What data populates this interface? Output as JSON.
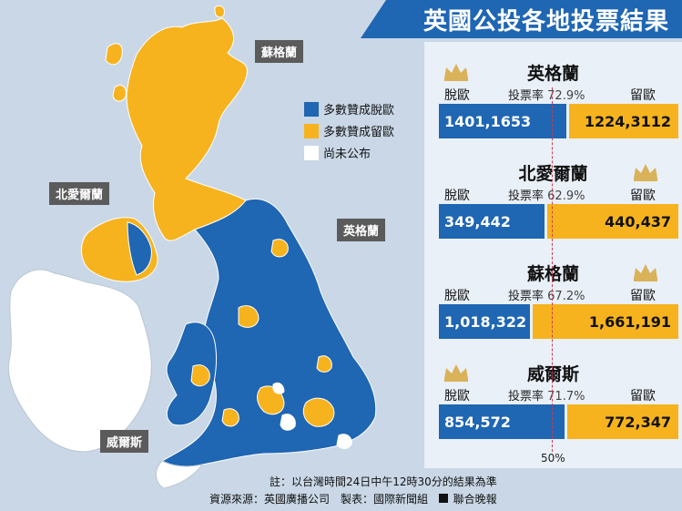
{
  "title": "英國公投各地投票結果",
  "legend": [
    {
      "label": "多數贊成脫歐",
      "color": "#1f66b3"
    },
    {
      "label": "多數贊成留歐",
      "color": "#f6b31e"
    },
    {
      "label": "尚未公布",
      "color": "#ffffff"
    }
  ],
  "map_labels": {
    "scotland": "蘇格蘭",
    "northern_ireland": "北愛爾蘭",
    "england": "英格蘭",
    "wales": "威爾斯"
  },
  "chart_data": {
    "type": "bar",
    "orientation": "horizontal",
    "stacked_share": true,
    "series_labels": {
      "leave": "脫歐",
      "remain": "留歐"
    },
    "turnout_label": "投票率",
    "reference_line_label": "50%",
    "regions": [
      {
        "name": "英格蘭",
        "turnout": "72.9%",
        "leave": 14011653,
        "remain": 12243112,
        "leave_text": "1401,1653",
        "remain_text": "1224,3112",
        "winner": "leave"
      },
      {
        "name": "北愛爾蘭",
        "turnout": "62.9%",
        "leave": 349442,
        "remain": 440437,
        "leave_text": "349,442",
        "remain_text": "440,437",
        "winner": "remain"
      },
      {
        "name": "蘇格蘭",
        "turnout": "67.2%",
        "leave": 1018322,
        "remain": 1661191,
        "leave_text": "1,018,322",
        "remain_text": "1,661,191",
        "winner": "remain"
      },
      {
        "name": "威爾斯",
        "turnout": "71.7%",
        "leave": 854572,
        "remain": 772347,
        "leave_text": "854,572",
        "remain_text": "772,347",
        "winner": "leave"
      }
    ]
  },
  "footnote": "註：以台灣時間24日中午12時30分的結果為準",
  "source": "資源來源：英國廣播公司　製表：國際新聞組",
  "publisher": "聯合晚報",
  "colors": {
    "leave": "#1f66b3",
    "remain": "#f6b31e",
    "crown": "#d9b25a"
  }
}
